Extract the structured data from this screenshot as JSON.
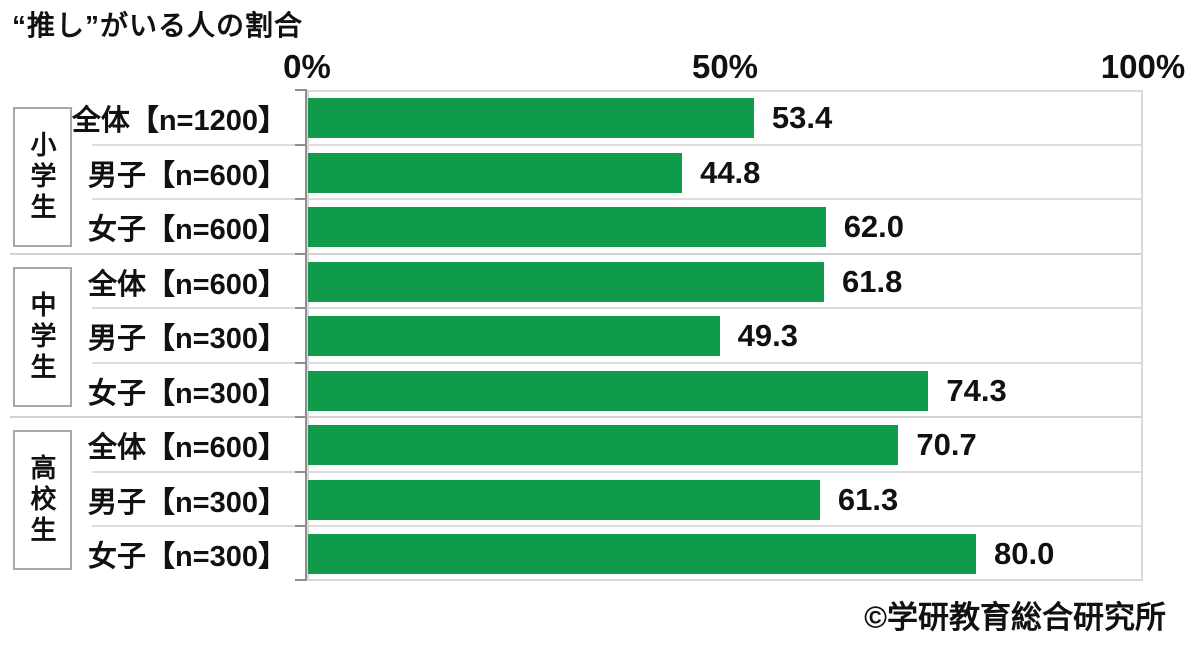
{
  "title": "“推し”がいる人の割合",
  "credit": "©学研教育総合研究所",
  "colors": {
    "bar": "#0f9b4a",
    "plot_border": "#d9d9d9",
    "axis_line": "#8f8f8f",
    "separator": "#dcdcdc",
    "group_box_border": "#a8a8a8",
    "text": "#111111",
    "background": "#ffffff"
  },
  "chart_data": {
    "type": "bar",
    "orientation": "horizontal",
    "title": "“推し”がいる人の割合",
    "xlabel": "",
    "ylabel": "",
    "unit": "%",
    "xlim": [
      0,
      100
    ],
    "grid": false,
    "legend": null,
    "x_axis": {
      "ticks": [
        "0%",
        "50%",
        "100%"
      ]
    },
    "groups": [
      {
        "group_label": "小学生",
        "rows": [
          {
            "label": "全体【n=1200】",
            "value": 53.4,
            "value_label": "53.4"
          },
          {
            "label": "男子【n=600】",
            "value": 44.8,
            "value_label": "44.8"
          },
          {
            "label": "女子【n=600】",
            "value": 62.0,
            "value_label": "62.0"
          }
        ]
      },
      {
        "group_label": "中学生",
        "rows": [
          {
            "label": "全体【n=600】",
            "value": 61.8,
            "value_label": "61.8"
          },
          {
            "label": "男子【n=300】",
            "value": 49.3,
            "value_label": "49.3"
          },
          {
            "label": "女子【n=300】",
            "value": 74.3,
            "value_label": "74.3"
          }
        ]
      },
      {
        "group_label": "高校生",
        "rows": [
          {
            "label": "全体【n=600】",
            "value": 70.7,
            "value_label": "70.7"
          },
          {
            "label": "男子【n=300】",
            "value": 61.3,
            "value_label": "61.3"
          },
          {
            "label": "女子【n=300】",
            "value": 80.0,
            "value_label": "80.0"
          }
        ]
      }
    ]
  }
}
